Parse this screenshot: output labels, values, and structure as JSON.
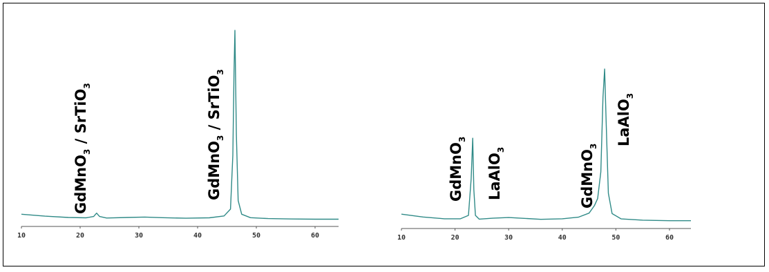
{
  "colors": {
    "curve": "#2f8a87",
    "axis": "#555555",
    "frame": "#000000"
  },
  "chart_data": [
    {
      "type": "line",
      "xlim": [
        10,
        64
      ],
      "ylim": [
        0,
        100
      ],
      "xticks": [
        "10",
        "20",
        "30",
        "40",
        "50",
        "60"
      ],
      "x": [
        10,
        14,
        18,
        21,
        22.3,
        22.8,
        23.3,
        24.5,
        28,
        31,
        34,
        38,
        42,
        44.5,
        45.6,
        46.0,
        46.2,
        46.35,
        46.6,
        46.9,
        47.5,
        49,
        52,
        56,
        60,
        64
      ],
      "values": [
        2.8,
        1.8,
        1.1,
        0.9,
        1.6,
        3.4,
        1.6,
        0.8,
        1.1,
        1.3,
        1.0,
        0.7,
        0.9,
        1.9,
        5.5,
        34,
        78,
        100,
        45,
        10,
        2.8,
        1.0,
        0.5,
        0.3,
        0.2,
        0.2
      ],
      "annotations": [
        {
          "id": "left-peak-1",
          "formula": "GdMnO",
          "sub": "3",
          "rest": " / SrTiO",
          "sub2": "3"
        },
        {
          "id": "left-peak-2",
          "formula": "GdMnO",
          "sub": "3",
          "rest": " / SrTiO",
          "sub2": "3"
        }
      ]
    },
    {
      "type": "line",
      "xlim": [
        10,
        64
      ],
      "ylim": [
        0,
        100
      ],
      "xticks": [
        "10",
        "20",
        "30",
        "40",
        "50",
        "60"
      ],
      "x": [
        10,
        14,
        18,
        21,
        22.5,
        23.0,
        23.3,
        23.5,
        23.8,
        24.5,
        27,
        30,
        32,
        36,
        40,
        43,
        45,
        46,
        46.6,
        47.2,
        47.6,
        47.9,
        48.2,
        48.6,
        49.3,
        51,
        55,
        60,
        64
      ],
      "values": [
        4.2,
        2.6,
        1.6,
        1.6,
        3.5,
        24,
        47,
        18,
        3.5,
        1.4,
        1.9,
        2.3,
        2.0,
        1.3,
        1.6,
        2.5,
        4.8,
        9,
        13,
        28,
        70,
        86,
        55,
        16,
        4.5,
        1.5,
        0.8,
        0.5,
        0.5
      ],
      "annotations": [
        {
          "id": "right-peak-1",
          "formula": "GdMnO",
          "sub": "3",
          "rest": "",
          "sub2": ""
        },
        {
          "id": "right-peak-2",
          "formula": "LaAlO",
          "sub": "3",
          "rest": "",
          "sub2": ""
        },
        {
          "id": "right-peak-3",
          "formula": "GdMnO",
          "sub": "3",
          "rest": "",
          "sub2": ""
        },
        {
          "id": "right-peak-4",
          "formula": "LaAlO",
          "sub": "3",
          "rest": "",
          "sub2": ""
        }
      ]
    }
  ]
}
